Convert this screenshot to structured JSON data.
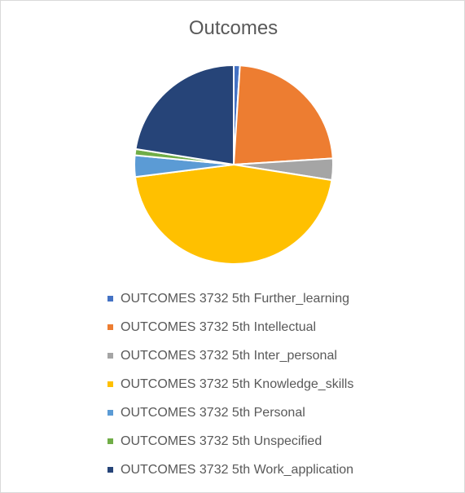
{
  "chart_data": {
    "type": "pie",
    "title": "Outcomes",
    "legend_position": "bottom",
    "categories": [
      "OUTCOMES 3732 5th Further_learning",
      "OUTCOMES 3732 5th Intellectual",
      "OUTCOMES 3732 5th Inter_personal",
      "OUTCOMES 3732 5th Knowledge_skills",
      "OUTCOMES 3732 5th Personal",
      "OUTCOMES 3732 5th Unspecified",
      "OUTCOMES 3732 5th Work_application"
    ],
    "values": [
      1.0,
      23.0,
      3.5,
      45.5,
      3.5,
      1.0,
      22.5
    ],
    "value_unit": "percent",
    "colors": [
      "#4472c4",
      "#ed7d31",
      "#a5a5a5",
      "#ffc000",
      "#5b9bd5",
      "#70ad47",
      "#264478"
    ]
  }
}
